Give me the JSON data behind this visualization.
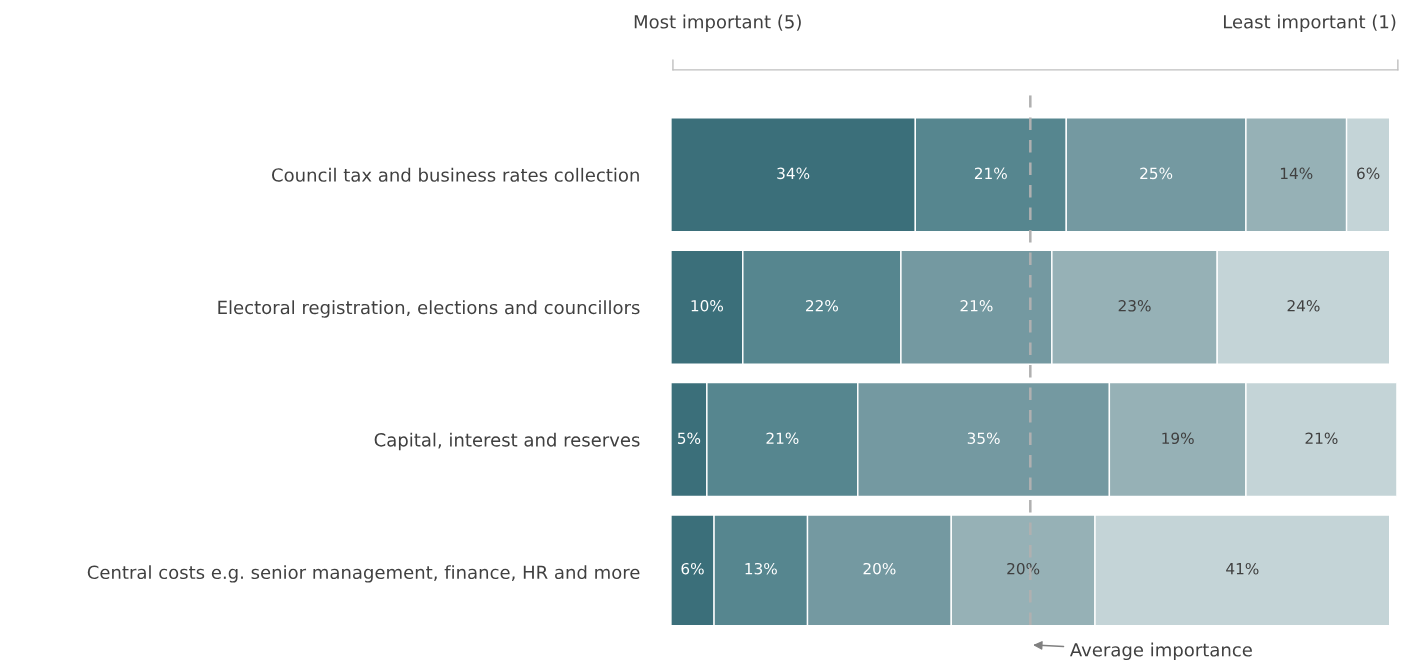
{
  "chart_data": {
    "type": "bar",
    "orientation": "horizontal",
    "stacked": true,
    "tick_labels": "y",
    "grid": false,
    "legend": false,
    "categories": [
      "Council tax and business rates collection",
      "Electoral registration, elections and councillors",
      "Capital, interest and reserves",
      "Central costs e.g. senior management, finance, HR and more"
    ],
    "series": [
      {
        "color": "#3b6f7a",
        "values": [
          34,
          10,
          5,
          6
        ],
        "value_labels": [
          "34%",
          "10%",
          "5%",
          "6%"
        ]
      },
      {
        "color": "#56868f",
        "values": [
          21,
          22,
          21,
          13
        ],
        "value_labels": [
          "21%",
          "22%",
          "21%",
          "13%"
        ]
      },
      {
        "color": "#7499a1",
        "values": [
          25,
          21,
          35,
          20
        ],
        "value_labels": [
          "25%",
          "21%",
          "35%",
          "20%"
        ]
      },
      {
        "color": "#96b1b6",
        "values": [
          14,
          23,
          19,
          20
        ],
        "value_labels": [
          "14%",
          "23%",
          "19%",
          "20%"
        ]
      },
      {
        "color": "#c4d4d7",
        "values": [
          6,
          24,
          21,
          41
        ],
        "value_labels": [
          "6%",
          "24%",
          "21%",
          "41%"
        ]
      }
    ],
    "ref_lines": [
      {
        "axis": "x",
        "value": 50,
        "label": "Average importance",
        "color": "#b0b0b0",
        "line_style": "dashed"
      }
    ],
    "annotations": [
      "Most important (5)",
      "Least important (1)"
    ]
  }
}
